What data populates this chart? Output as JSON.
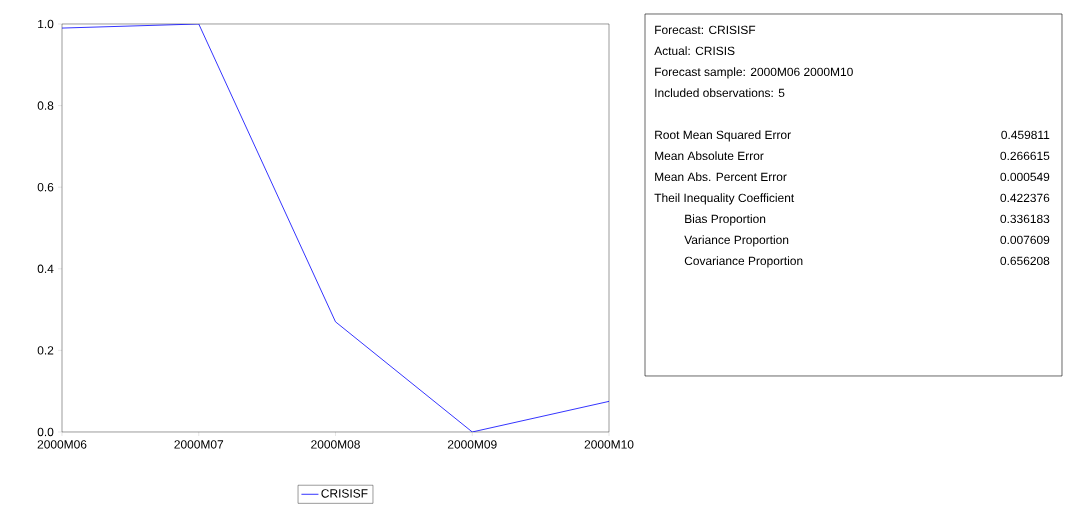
{
  "chart_data": {
    "type": "line",
    "categories": [
      "2000M06",
      "2000M07",
      "2000M08",
      "2000M09",
      "2000M10"
    ],
    "series": [
      {
        "name": "CRISISF",
        "color": "#0000ff",
        "values": [
          0.99,
          1.0,
          0.27,
          0.0,
          0.075
        ]
      }
    ],
    "ylim": [
      0,
      1
    ],
    "yticks": [
      {
        "value": 0,
        "label": "0.0"
      },
      {
        "value": 0.2,
        "label": "0.2"
      },
      {
        "value": 0.4,
        "label": "0.4"
      },
      {
        "value": 0.6,
        "label": "0.6"
      },
      {
        "value": 0.8,
        "label": "0.8"
      },
      {
        "value": 1,
        "label": "1.0"
      }
    ],
    "grid": false,
    "legend": "bottom",
    "marker": "none",
    "line_style": "solid",
    "annotations": [
      "Forecast: CRISISF",
      "Actual: CRISIS",
      "Forecast sample: 2000M06 2000M10",
      "Included observations: 5",
      "Root Mean Squared Error",
      "0.459811",
      "Mean Absolute Error",
      "0.266615",
      "Mean Abs. Percent Error",
      "0.000549",
      "Theil Inequality Coefficient",
      "0.422376",
      "Bias Proportion",
      "0.336183",
      "Variance Proportion",
      "0.007609",
      "Covariance Proportion",
      "0.656208"
    ]
  }
}
